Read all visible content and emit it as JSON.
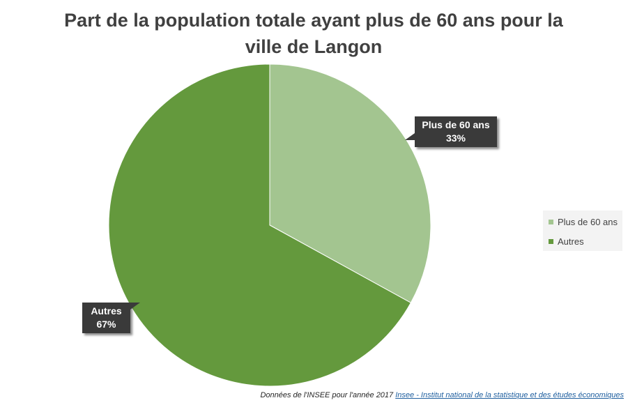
{
  "chart_data": {
    "type": "pie",
    "title_line1": "Part de la population totale ayant plus de 60 ans pour la",
    "title_line2": "ville de Langon",
    "categories": [
      "Plus de 60 ans",
      "Autres"
    ],
    "values": [
      33,
      67
    ],
    "colors": [
      "#a3c590",
      "#64993d"
    ],
    "data_labels": [
      {
        "name": "Plus de 60 ans",
        "value": "33%"
      },
      {
        "name": "Autres",
        "value": "67%"
      }
    ],
    "legend_placement": "right"
  },
  "footer": {
    "text": "Données de l'INSEE pour l'année 2017",
    "link": "Insee - Institut national de la statistique et des études économiques"
  }
}
